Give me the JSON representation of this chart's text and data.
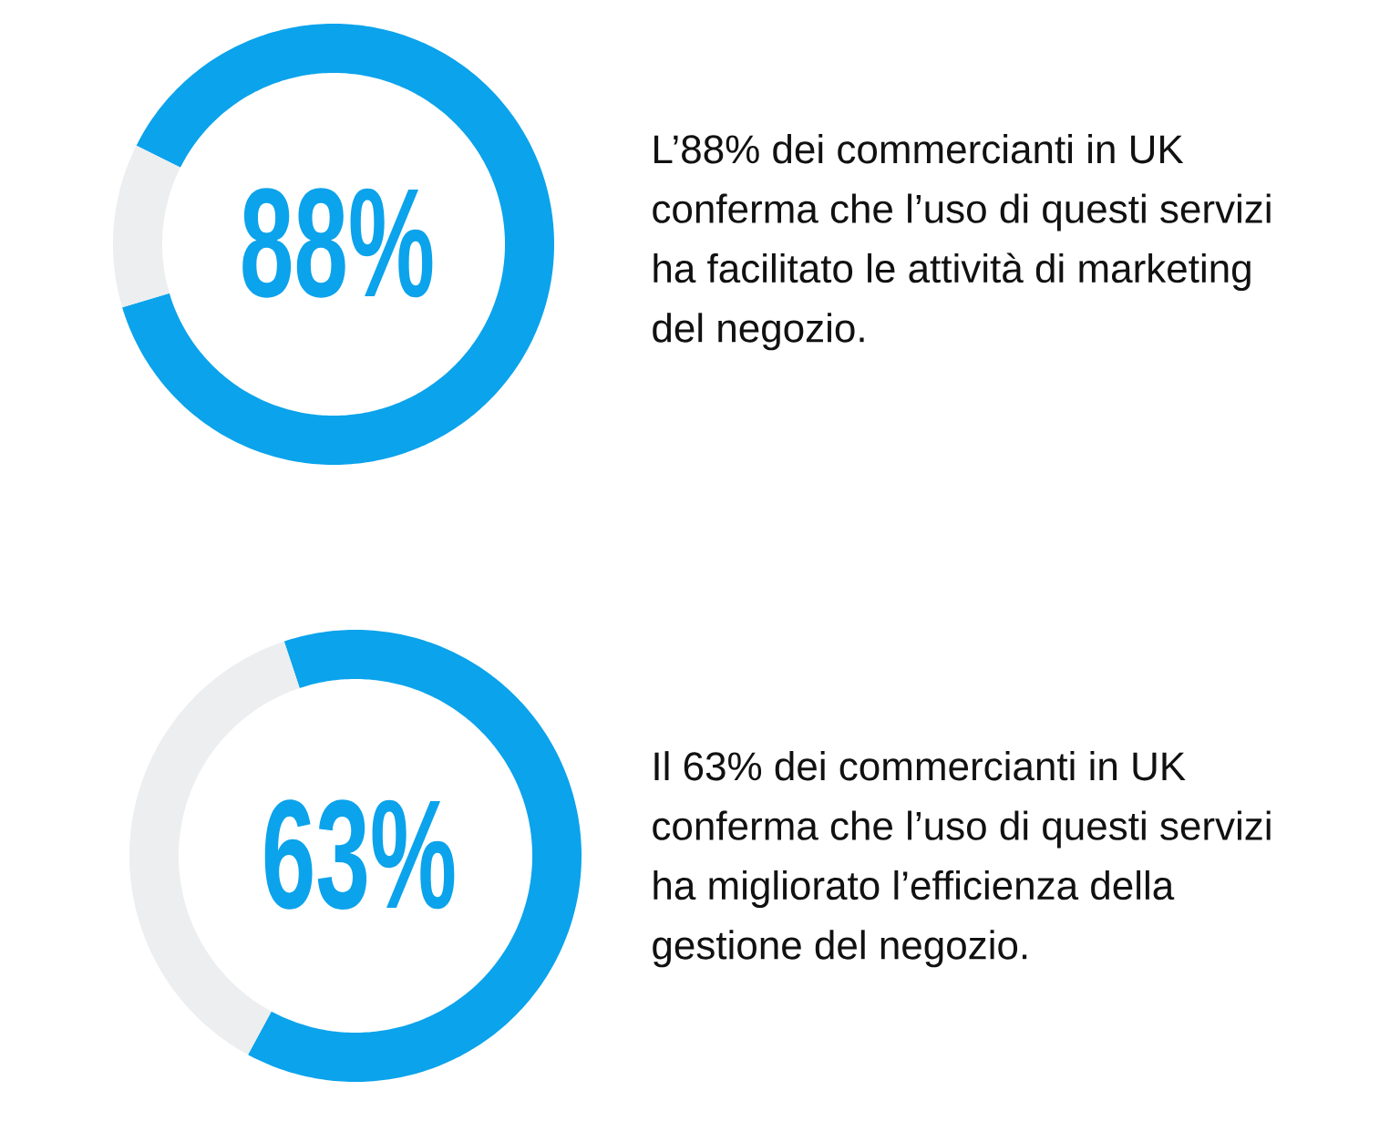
{
  "chart_data": [
    {
      "type": "donut",
      "categories": [
        null,
        null
      ],
      "values": [
        88,
        12
      ],
      "colors": [
        "#0ba3eb",
        "#eceef0"
      ],
      "value_labels": [
        "88%",
        null
      ],
      "annotations": [
        "L’88% dei commercianti in UK conferma che l’uso di questi servizi ha facilitato le attività di marketing del negozio."
      ]
    },
    {
      "type": "donut",
      "categories": [
        null,
        null
      ],
      "values": [
        63,
        37
      ],
      "colors": [
        "#0ba3eb",
        "#eceef0"
      ],
      "value_labels": [
        "63%",
        null
      ],
      "annotations": [
        "Il 63% dei commercianti in UK conferma che l’uso di questi servizi ha migliorato l’efficienza della gestione del negozio."
      ]
    }
  ]
}
